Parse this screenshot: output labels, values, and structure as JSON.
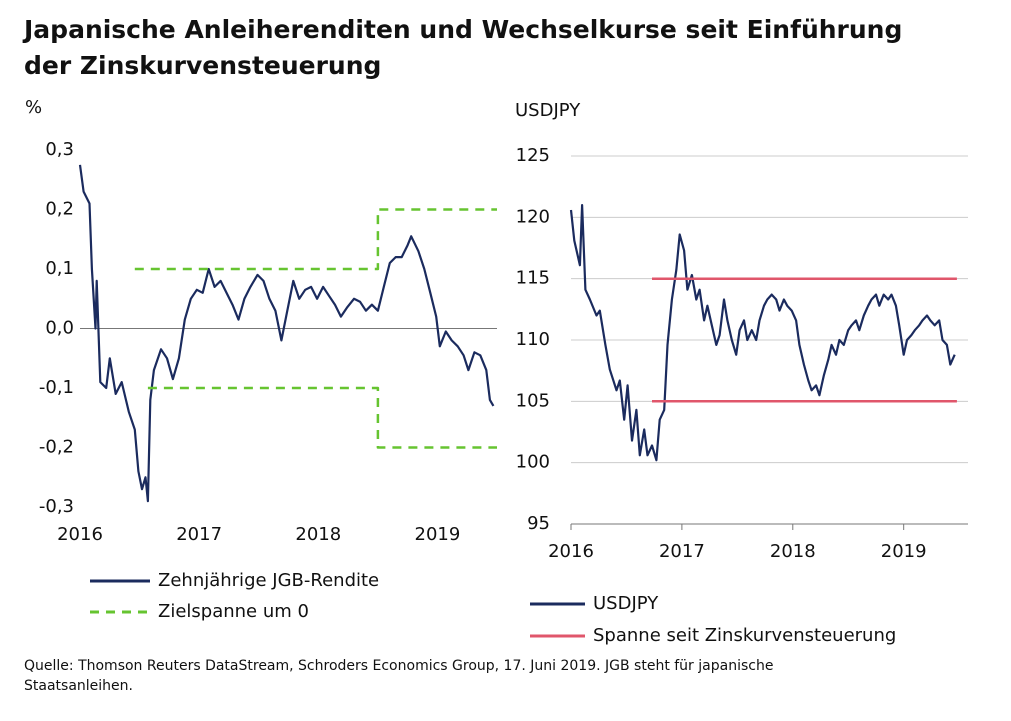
{
  "title": "Japanische Anleiherenditen und Wechselkurse seit Einführung der Zinskurvensteuerung",
  "source": "Quelle: Thomson Reuters DataStream, Schroders Economics Group, 17. Juni 2019. JGB steht für japanische Staatsanleihen.",
  "chart_data": [
    {
      "type": "line",
      "y_label": "%",
      "xlim": [
        2016,
        2019.5
      ],
      "ylim": [
        -0.3,
        0.3
      ],
      "xticks": [
        2016,
        2017,
        2018,
        2019
      ],
      "yticks": [
        {
          "value": 0.3,
          "label": "0,3"
        },
        {
          "value": 0.2,
          "label": "0,2"
        },
        {
          "value": 0.1,
          "label": "0,1"
        },
        {
          "value": 0,
          "label": "0,0"
        },
        {
          "value": -0.1,
          "label": "-0,1"
        },
        {
          "value": -0.2,
          "label": "-0,2"
        },
        {
          "value": -0.3,
          "label": "-0,3"
        }
      ],
      "grid": false,
      "zero_line": true,
      "series": [
        {
          "name": "Zehnjährige JGB-Rendite",
          "color": "#1b2b5e",
          "line_style": "solid",
          "x": [
            2016.0,
            2016.03,
            2016.08,
            2016.1,
            2016.13,
            2016.14,
            2016.17,
            2016.22,
            2016.25,
            2016.3,
            2016.35,
            2016.41,
            2016.46,
            2016.49,
            2016.52,
            2016.55,
            2016.57,
            2016.59,
            2016.62,
            2016.68,
            2016.73,
            2016.78,
            2016.83,
            2016.88,
            2016.93,
            2016.98,
            2017.03,
            2017.08,
            2017.13,
            2017.18,
            2017.23,
            2017.28,
            2017.33,
            2017.38,
            2017.43,
            2017.49,
            2017.54,
            2017.59,
            2017.64,
            2017.69,
            2017.74,
            2017.79,
            2017.84,
            2017.89,
            2017.94,
            2017.99,
            2018.04,
            2018.09,
            2018.14,
            2018.19,
            2018.24,
            2018.3,
            2018.35,
            2018.4,
            2018.45,
            2018.5,
            2018.55,
            2018.6,
            2018.65,
            2018.7,
            2018.75,
            2018.78,
            2018.84,
            2018.89,
            2018.94,
            2018.99,
            2019.02,
            2019.07,
            2019.12,
            2019.17,
            2019.22,
            2019.26,
            2019.31,
            2019.36,
            2019.41,
            2019.44,
            2019.47
          ],
          "values": [
            0.275,
            0.23,
            0.21,
            0.1,
            0,
            0.08,
            -0.09,
            -0.1,
            -0.05,
            -0.11,
            -0.09,
            -0.14,
            -0.17,
            -0.24,
            -0.27,
            -0.25,
            -0.29,
            -0.12,
            -0.07,
            -0.035,
            -0.05,
            -0.085,
            -0.05,
            0.015,
            0.05,
            0.065,
            0.06,
            0.1,
            0.07,
            0.08,
            0.06,
            0.04,
            0.015,
            0.05,
            0.07,
            0.09,
            0.08,
            0.05,
            0.03,
            -0.02,
            0.03,
            0.08,
            0.05,
            0.065,
            0.07,
            0.05,
            0.07,
            0.055,
            0.04,
            0.02,
            0.035,
            0.05,
            0.045,
            0.03,
            0.04,
            0.03,
            0.07,
            0.11,
            0.12,
            0.12,
            0.14,
            0.155,
            0.13,
            0.1,
            0.06,
            0.02,
            -0.03,
            -0.005,
            -0.02,
            -0.03,
            -0.045,
            -0.07,
            -0.04,
            -0.045,
            -0.07,
            -0.12,
            -0.13
          ]
        },
        {
          "name": "Zielspanne um 0",
          "color": "#66c430",
          "line_style": "dashed",
          "x": [
            2016.46,
            2018.5,
            2018.5,
            2019.5,
            null,
            2016.57,
            2018.5,
            2018.5,
            2019.5
          ],
          "values": [
            0.1,
            0.1,
            0.2,
            0.2,
            null,
            -0.1,
            -0.1,
            -0.2,
            -0.2
          ]
        }
      ]
    },
    {
      "type": "line",
      "y_label": "USDJPY",
      "xlim": [
        2016,
        2019.58
      ],
      "ylim": [
        95,
        125
      ],
      "xticks": [
        2016,
        2017,
        2018,
        2019
      ],
      "yticks": [
        125,
        120,
        115,
        110,
        105,
        100,
        95
      ],
      "grid": true,
      "zero_line": false,
      "series": [
        {
          "name": "USDJPY",
          "color": "#1b2b5e",
          "line_style": "solid",
          "x": [
            2016.0,
            2016.03,
            2016.08,
            2016.1,
            2016.13,
            2016.17,
            2016.23,
            2016.26,
            2016.31,
            2016.35,
            2016.41,
            2016.44,
            2016.48,
            2016.51,
            2016.55,
            2016.59,
            2016.62,
            2016.66,
            2016.69,
            2016.73,
            2016.77,
            2016.8,
            2016.84,
            2016.87,
            2016.91,
            2016.95,
            2016.98,
            2017.02,
            2017.05,
            2017.09,
            2017.13,
            2017.16,
            2017.2,
            2017.23,
            2017.27,
            2017.31,
            2017.34,
            2017.38,
            2017.41,
            2017.45,
            2017.49,
            2017.52,
            2017.56,
            2017.59,
            2017.63,
            2017.67,
            2017.7,
            2017.74,
            2017.77,
            2017.81,
            2017.85,
            2017.88,
            2017.92,
            2017.95,
            2017.99,
            2018.03,
            2018.06,
            2018.1,
            2018.14,
            2018.17,
            2018.21,
            2018.24,
            2018.28,
            2018.32,
            2018.35,
            2018.39,
            2018.42,
            2018.46,
            2018.5,
            2018.53,
            2018.57,
            2018.6,
            2018.64,
            2018.68,
            2018.71,
            2018.75,
            2018.78,
            2018.82,
            2018.86,
            2018.89,
            2018.93,
            2018.96,
            2019.0,
            2019.03,
            2019.07,
            2019.1,
            2019.14,
            2019.17,
            2019.21,
            2019.24,
            2019.28,
            2019.32,
            2019.35,
            2019.39,
            2019.42,
            2019.46
          ],
          "values": [
            120.6,
            118.1,
            116.1,
            121.0,
            114.1,
            113.3,
            112.0,
            112.4,
            109.6,
            107.6,
            105.9,
            106.7,
            103.5,
            106.3,
            101.8,
            104.3,
            100.6,
            102.7,
            100.6,
            101.4,
            100.2,
            103.5,
            104.3,
            109.6,
            113.3,
            115.7,
            118.6,
            117.3,
            114.1,
            115.3,
            113.3,
            114.1,
            111.6,
            112.8,
            111.2,
            109.6,
            110.4,
            113.3,
            111.6,
            110.0,
            108.8,
            110.8,
            111.6,
            110.0,
            110.8,
            110.0,
            111.6,
            112.8,
            113.3,
            113.7,
            113.3,
            112.4,
            113.3,
            112.8,
            112.4,
            111.6,
            109.6,
            108.0,
            106.7,
            105.9,
            106.3,
            105.5,
            107.1,
            108.4,
            109.6,
            108.8,
            110.0,
            109.6,
            110.8,
            111.2,
            111.6,
            110.8,
            112.0,
            112.8,
            113.3,
            113.7,
            112.8,
            113.7,
            113.3,
            113.7,
            112.8,
            111.2,
            108.8,
            110.0,
            110.4,
            110.8,
            111.2,
            111.6,
            112.0,
            111.6,
            111.2,
            111.6,
            110.0,
            109.6,
            108.0,
            108.8
          ]
        },
        {
          "name": "Spanne seit Zinskurvensteuerung",
          "color": "#e0566b",
          "line_style": "solid",
          "x": [
            2016.73,
            2019.48,
            null,
            2016.73,
            2019.48
          ],
          "values": [
            115,
            115,
            null,
            105,
            105
          ]
        }
      ]
    }
  ]
}
